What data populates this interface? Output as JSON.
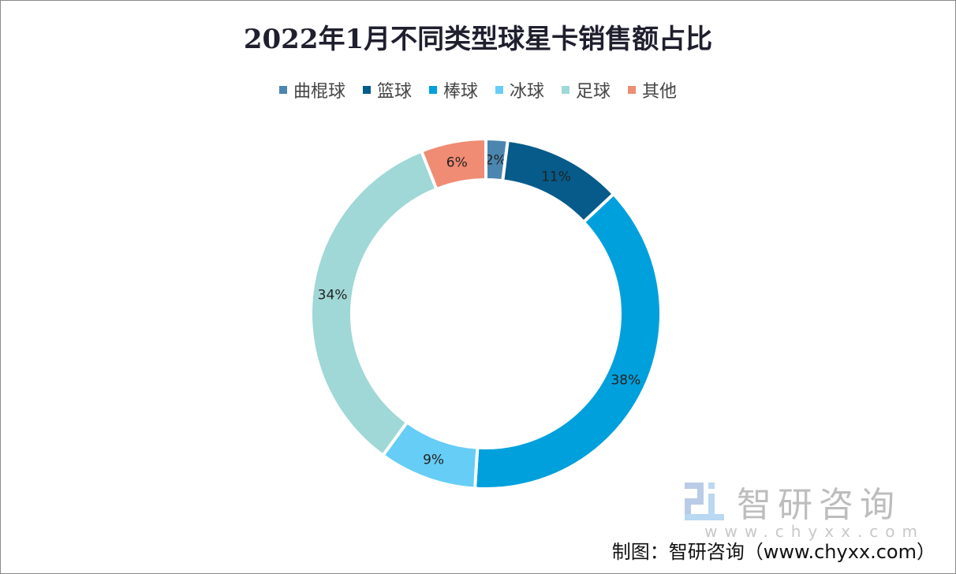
{
  "chart_data": {
    "type": "pie",
    "variant": "donut",
    "title": "2022年1月不同类型球星卡销售额占比",
    "categories": [
      "曲棍球",
      "篮球",
      "棒球",
      "冰球",
      "足球",
      "其他"
    ],
    "values": [
      2,
      11,
      38,
      9,
      34,
      6
    ],
    "data_labels": [
      "2%",
      "11%",
      "38%",
      "9%",
      "34%",
      "6%"
    ],
    "colors": [
      "#4a86b0",
      "#065b8a",
      "#00a0dc",
      "#66cdf6",
      "#9fd8d6",
      "#f08b74"
    ],
    "legend_position": "top"
  },
  "watermark": {
    "brand": "智研咨询",
    "url": "www.chyxx.com"
  },
  "source": "制图：智研咨询（www.chyxx.com）"
}
